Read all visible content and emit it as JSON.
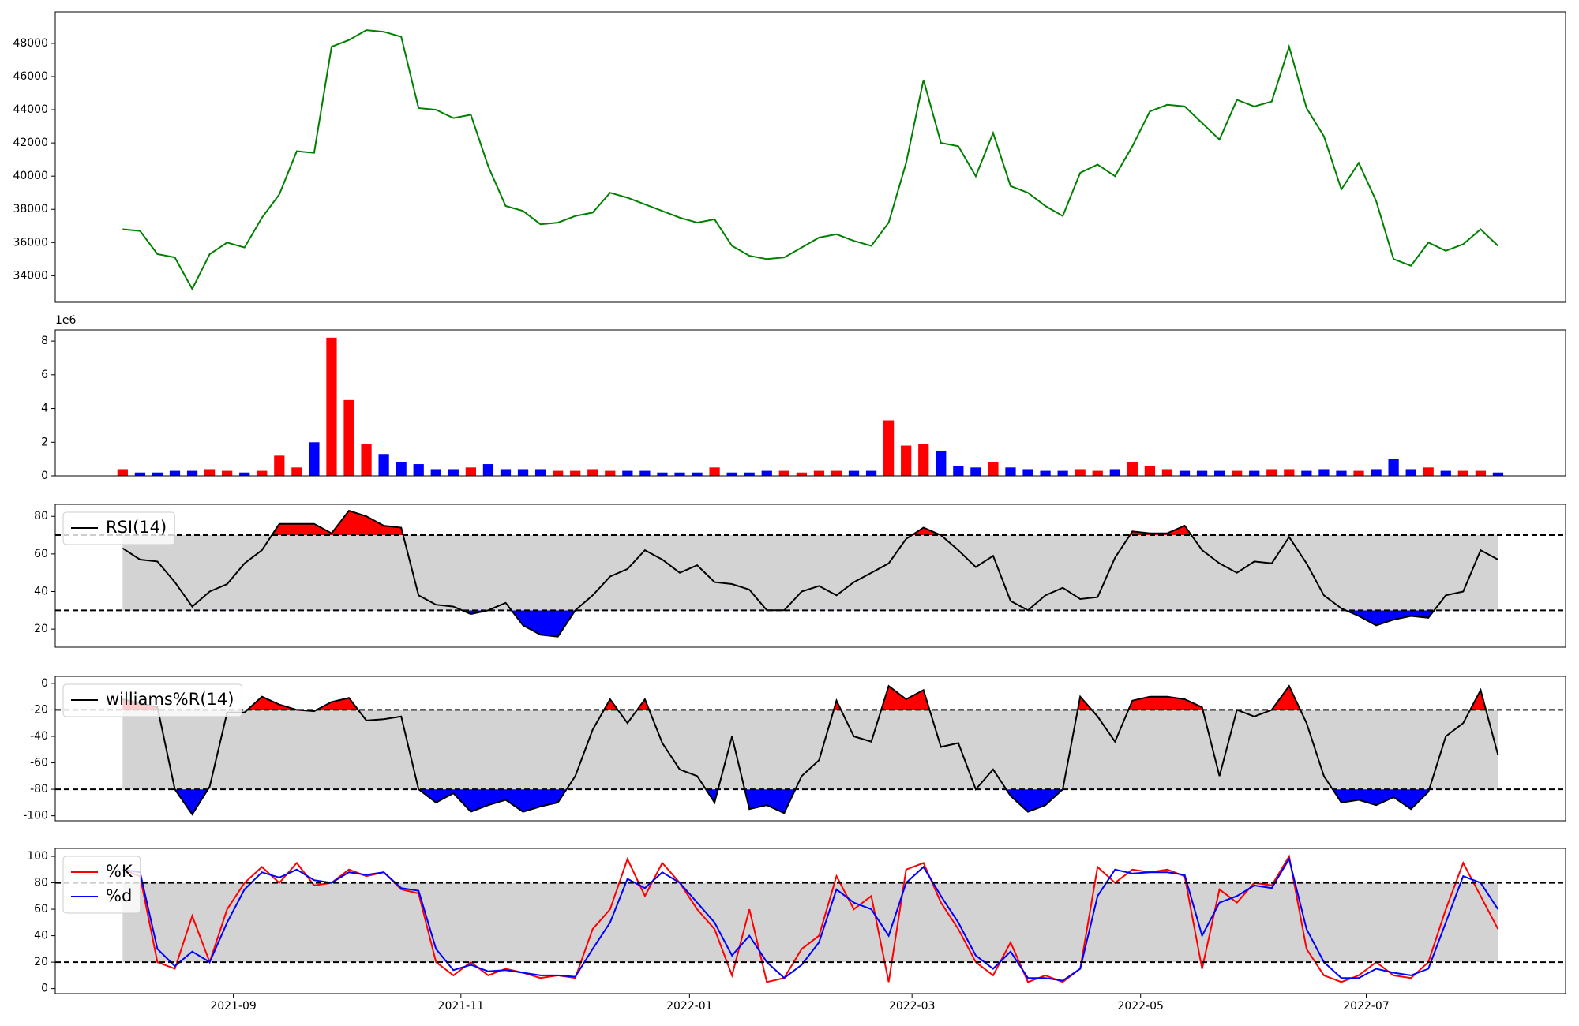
{
  "chart_data": [
    {
      "type": "line",
      "xlim": [
        -3.87,
        82.88
      ],
      "ylim": [
        32400,
        49900
      ],
      "yticks": [
        34000,
        36000,
        38000,
        40000,
        42000,
        44000,
        46000,
        48000
      ],
      "series": [
        {
          "color": "green",
          "values": [
            36800,
            36700,
            35300,
            35100,
            33200,
            35300,
            36000,
            35700,
            37500,
            38900,
            41500,
            41400,
            47800,
            48200,
            48800,
            48700,
            48400,
            44100,
            44000,
            43500,
            43700,
            40600,
            38200,
            37900,
            37100,
            37200,
            37600,
            37800,
            39000,
            38700,
            38300,
            37900,
            37500,
            37200,
            37400,
            35800,
            35200,
            35000,
            35100,
            35700,
            36300,
            36500,
            36100,
            35800,
            37200,
            40800,
            45800,
            42000,
            41800,
            40000,
            42600,
            39400,
            39000,
            38200,
            37600,
            40200,
            40700,
            40000,
            41800,
            43900,
            44300,
            44200,
            43200,
            42200,
            44600,
            44200,
            44500,
            47800,
            44100,
            42400,
            39200,
            40800,
            38500,
            35000,
            34600,
            36000,
            35500,
            35900,
            36800,
            35800
          ]
        }
      ]
    },
    {
      "type": "bar",
      "xlim": [
        -3.87,
        82.88
      ],
      "ylim": [
        0,
        8.66
      ],
      "yticks": [
        0,
        2,
        4,
        6,
        8
      ],
      "offset_label": "1e6",
      "up_color": "red",
      "down_color": "blue",
      "values": [
        0.4,
        0.2,
        0.2,
        0.3,
        0.3,
        0.4,
        0.3,
        0.2,
        0.3,
        1.2,
        0.5,
        2.0,
        8.2,
        4.5,
        1.9,
        1.3,
        0.8,
        0.7,
        0.4,
        0.4,
        0.5,
        0.7,
        0.4,
        0.4,
        0.4,
        0.3,
        0.3,
        0.4,
        0.3,
        0.3,
        0.3,
        0.2,
        0.2,
        0.2,
        0.5,
        0.2,
        0.2,
        0.3,
        0.3,
        0.2,
        0.3,
        0.3,
        0.3,
        0.3,
        3.3,
        1.8,
        1.9,
        1.5,
        0.6,
        0.5,
        0.8,
        0.5,
        0.4,
        0.3,
        0.3,
        0.4,
        0.3,
        0.4,
        0.8,
        0.6,
        0.4,
        0.3,
        0.3,
        0.3,
        0.3,
        0.3,
        0.4,
        0.4,
        0.3,
        0.4,
        0.3,
        0.3,
        0.4,
        1.0,
        0.4,
        0.5,
        0.3,
        0.3,
        0.3,
        0.2
      ]
    },
    {
      "type": "line",
      "xlim": [
        -3.87,
        82.88
      ],
      "ylim": [
        10.4,
        86.4
      ],
      "yticks": [
        20,
        40,
        60,
        80
      ],
      "hlines": [
        30,
        70
      ],
      "band_fill": "lightgray",
      "over_fill": "red",
      "under_fill": "blue",
      "legend": "upper left",
      "series": [
        {
          "name": "RSI(14)",
          "color": "black",
          "values": [
            63,
            57,
            56,
            45,
            32,
            40,
            44,
            55,
            62,
            76,
            76,
            76,
            71,
            83,
            80,
            75,
            74,
            38,
            33,
            32,
            28,
            30,
            34,
            22,
            17,
            16,
            30,
            38,
            48,
            52,
            62,
            57,
            50,
            54,
            45,
            44,
            41,
            30,
            30,
            40,
            43,
            38,
            45,
            50,
            55,
            68,
            74,
            70,
            62,
            53,
            59,
            35,
            30,
            38,
            42,
            36,
            37,
            58,
            72,
            71,
            71,
            75,
            62,
            55,
            50,
            56,
            55,
            69,
            55,
            38,
            31,
            27,
            22,
            25,
            27,
            26,
            38,
            40,
            62,
            57
          ]
        }
      ]
    },
    {
      "type": "line",
      "xlim": [
        -3.87,
        82.88
      ],
      "ylim": [
        -103.8,
        5.3
      ],
      "yticks": [
        -100,
        -80,
        -60,
        -40,
        -20,
        0
      ],
      "hlines": [
        -80,
        -20
      ],
      "band_fill": "lightgray",
      "over_fill": "red",
      "under_fill": "blue",
      "legend": "upper left",
      "series": [
        {
          "name": "williams%R(14)",
          "color": "black",
          "values": [
            -12,
            -15,
            -18,
            -80,
            -99,
            -78,
            -22,
            -22,
            -10,
            -16,
            -20,
            -21,
            -14,
            -11,
            -28,
            -27,
            -25,
            -80,
            -90,
            -83,
            -97,
            -92,
            -88,
            -97,
            -93,
            -90,
            -70,
            -35,
            -12,
            -30,
            -12,
            -45,
            -65,
            -70,
            -90,
            -40,
            -95,
            -92,
            -98,
            -70,
            -58,
            -13,
            -40,
            -44,
            -2,
            -12,
            -5,
            -48,
            -45,
            -80,
            -65,
            -85,
            -97,
            -92,
            -80,
            -10,
            -25,
            -44,
            -13,
            -10,
            -10,
            -12,
            -18,
            -70,
            -20,
            -25,
            -20,
            -2,
            -30,
            -70,
            -90,
            -88,
            -92,
            -86,
            -95,
            -82,
            -40,
            -30,
            -5,
            -54
          ]
        }
      ]
    },
    {
      "type": "line",
      "xlim": [
        -3.87,
        82.88
      ],
      "ylim": [
        -3.8,
        106
      ],
      "yticks": [
        0,
        20,
        40,
        60,
        80,
        100
      ],
      "xticks": [
        {
          "value": 6.36,
          "label": "2021-09"
        },
        {
          "value": 19.43,
          "label": "2021-11"
        },
        {
          "value": 32.56,
          "label": "2022-01"
        },
        {
          "value": 45.34,
          "label": "2022-03"
        },
        {
          "value": 58.47,
          "label": "2022-05"
        },
        {
          "value": 71.43,
          "label": "2022-07"
        }
      ],
      "hlines": [
        20,
        80
      ],
      "band_fill": "lightgray",
      "legend": "upper left",
      "series": [
        {
          "name": "%K",
          "color": "red",
          "values": [
            90,
            85,
            20,
            15,
            55,
            20,
            60,
            80,
            92,
            80,
            95,
            78,
            80,
            90,
            85,
            88,
            75,
            72,
            20,
            10,
            20,
            10,
            15,
            12,
            8,
            10,
            8,
            45,
            60,
            98,
            70,
            95,
            80,
            60,
            45,
            10,
            60,
            5,
            8,
            30,
            40,
            85,
            60,
            70,
            5,
            90,
            95,
            65,
            45,
            20,
            10,
            35,
            5,
            10,
            5,
            15,
            92,
            80,
            90,
            88,
            90,
            85,
            15,
            75,
            65,
            80,
            78,
            100,
            30,
            10,
            5,
            10,
            20,
            10,
            8,
            20,
            60,
            95,
            70,
            45
          ]
        },
        {
          "name": "%d",
          "color": "blue",
          "values": [
            90,
            88,
            30,
            17,
            28,
            20,
            50,
            75,
            88,
            84,
            90,
            82,
            80,
            88,
            86,
            88,
            76,
            74,
            30,
            14,
            18,
            13,
            14,
            12,
            10,
            10,
            9,
            30,
            50,
            83,
            76,
            88,
            80,
            65,
            50,
            25,
            40,
            20,
            8,
            18,
            35,
            75,
            65,
            60,
            40,
            80,
            92,
            70,
            50,
            25,
            15,
            28,
            8,
            8,
            6,
            15,
            70,
            90,
            87,
            88,
            88,
            86,
            40,
            65,
            70,
            78,
            76,
            98,
            45,
            20,
            8,
            8,
            15,
            12,
            10,
            15,
            50,
            85,
            80,
            60
          ]
        }
      ]
    }
  ]
}
